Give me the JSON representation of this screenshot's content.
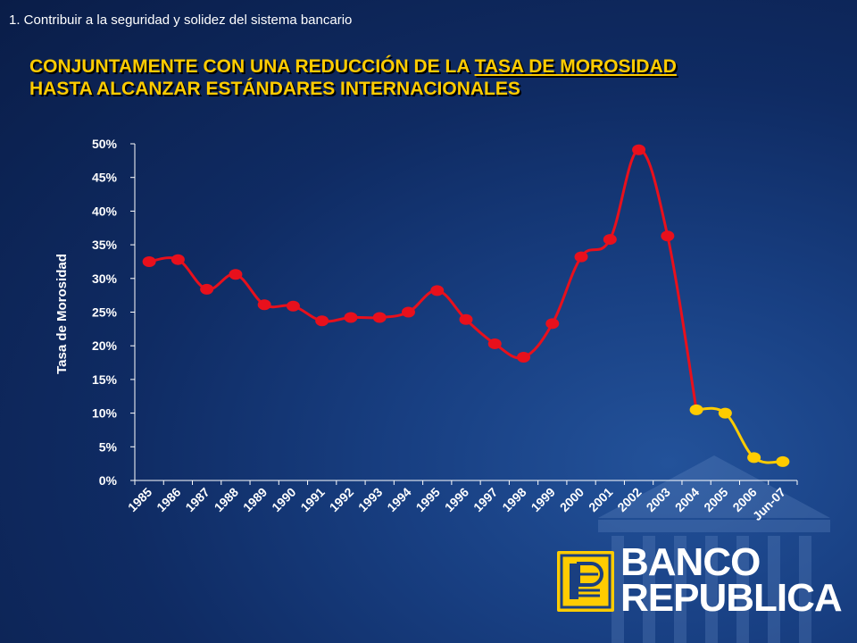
{
  "breadcrumb": "1.  Contribuir a la seguridad y solidez del sistema  bancario",
  "headline": {
    "prefix": "CONJUNTAMENTE CON UNA REDUCCIÓN DE LA ",
    "underlined": "TASA DE MOROSIDAD",
    "line2": "HASTA ALCANZAR ESTÁNDARES INTERNACIONALES"
  },
  "colors": {
    "accent": "#ffcc00",
    "series_red": "#e8101c",
    "series_yellow": "#ffcc00"
  },
  "logo": {
    "line1": "BANCO",
    "line2": "REPUBLICA",
    "icon": "banco-republica-logo-icon"
  },
  "chart_data": {
    "type": "line",
    "title": "",
    "ylabel": "Tasa de Morosidad",
    "xlabel": "",
    "ylim": [
      0,
      50
    ],
    "yticks": [
      "0%",
      "5%",
      "10%",
      "15%",
      "20%",
      "25%",
      "30%",
      "35%",
      "40%",
      "45%",
      "50%"
    ],
    "categories": [
      "1985",
      "1986",
      "1987",
      "1988",
      "1989",
      "1990",
      "1991",
      "1992",
      "1993",
      "1994",
      "1995",
      "1996",
      "1997",
      "1998",
      "1999",
      "2000",
      "2001",
      "2002",
      "2003",
      "2004",
      "2005",
      "2006",
      "Jun-07"
    ],
    "values": [
      32.5,
      32.8,
      28.4,
      30.6,
      26.1,
      25.9,
      23.7,
      24.2,
      24.2,
      25.0,
      28.2,
      23.9,
      20.3,
      18.3,
      23.3,
      33.2,
      35.8,
      49.1,
      36.3,
      10.5,
      10.0,
      3.4,
      2.8
    ],
    "segments": [
      {
        "from": 0,
        "to": 18,
        "color": "#e8101c"
      },
      {
        "from": 19,
        "to": 22,
        "color": "#ffcc00"
      }
    ],
    "grid": false,
    "legend": "none"
  }
}
